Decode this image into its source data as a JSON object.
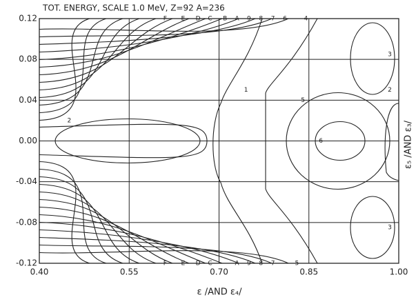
{
  "chart_data": {
    "type": "contour",
    "title": "TOT. ENERGY, SCALE 1.0 MeV, Z=92 A=236",
    "xlabel": "ε /AND ε₄/",
    "ylabel": "ε₅ /AND ε₃/",
    "xlim": [
      0.4,
      1.0
    ],
    "ylim": [
      -0.12,
      0.12
    ],
    "xticks": [
      {
        "value": 0.4,
        "label": "0.40"
      },
      {
        "value": 0.55,
        "label": "0.55"
      },
      {
        "value": 0.7,
        "label": "0.70"
      },
      {
        "value": 0.85,
        "label": "0.85"
      },
      {
        "value": 1.0,
        "label": "1.00"
      }
    ],
    "yticks": [
      {
        "value": 0.12,
        "label": "0.12"
      },
      {
        "value": 0.08,
        "label": "0.08"
      },
      {
        "value": 0.04,
        "label": "0.04"
      },
      {
        "value": 0.0,
        "label": "0.00"
      },
      {
        "value": -0.04,
        "label": "-0.04"
      },
      {
        "value": -0.08,
        "label": "-0.08"
      },
      {
        "value": -0.12,
        "label": "-0.12"
      }
    ],
    "grid": true,
    "annotations": [
      {
        "text": "2",
        "x": 0.45,
        "y": 0.02
      },
      {
        "text": "6",
        "x": 0.87,
        "y": 0.0
      },
      {
        "text": "5",
        "x": 0.84,
        "y": 0.04
      },
      {
        "text": "1",
        "x": 0.745,
        "y": 0.05
      },
      {
        "text": "3",
        "x": 0.985,
        "y": 0.085
      },
      {
        "text": "2",
        "x": 0.985,
        "y": 0.05
      },
      {
        "text": "3",
        "x": 0.985,
        "y": -0.085
      },
      {
        "text": "F",
        "x": 0.61,
        "y": 0.12
      },
      {
        "text": "E",
        "x": 0.64,
        "y": 0.12
      },
      {
        "text": "D",
        "x": 0.665,
        "y": 0.12
      },
      {
        "text": "C",
        "x": 0.685,
        "y": 0.12
      },
      {
        "text": "B",
        "x": 0.71,
        "y": 0.12
      },
      {
        "text": "A",
        "x": 0.73,
        "y": 0.12
      },
      {
        "text": "9",
        "x": 0.75,
        "y": 0.12
      },
      {
        "text": "8",
        "x": 0.77,
        "y": 0.12
      },
      {
        "text": "7",
        "x": 0.79,
        "y": 0.12
      },
      {
        "text": "6",
        "x": 0.81,
        "y": 0.12
      },
      {
        "text": "4",
        "x": 0.845,
        "y": 0.12
      },
      {
        "text": "F",
        "x": 0.61,
        "y": -0.12
      },
      {
        "text": "E",
        "x": 0.64,
        "y": -0.12
      },
      {
        "text": "D",
        "x": 0.665,
        "y": -0.12
      },
      {
        "text": "C",
        "x": 0.685,
        "y": -0.12
      },
      {
        "text": "A",
        "x": 0.73,
        "y": -0.12
      },
      {
        "text": "9",
        "x": 0.75,
        "y": -0.12
      },
      {
        "text": "8",
        "x": 0.77,
        "y": -0.12
      },
      {
        "text": "7",
        "x": 0.79,
        "y": -0.12
      },
      {
        "text": "5",
        "x": 0.83,
        "y": -0.12
      }
    ]
  }
}
